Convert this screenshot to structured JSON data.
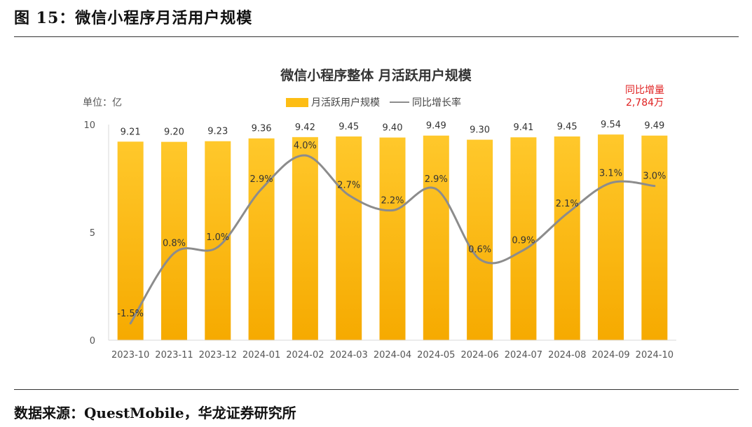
{
  "figure": {
    "title": "图 15：微信小程序月活用户规模",
    "source": "数据来源：QuestMobile，华龙证券研究所"
  },
  "chart_data": {
    "type": "bar",
    "title": "微信小程序整体 月活跃用户规模",
    "unit_label": "单位：亿",
    "categories": [
      "2023-10",
      "2023-11",
      "2023-12",
      "2024-01",
      "2024-02",
      "2024-03",
      "2024-04",
      "2024-05",
      "2024-06",
      "2024-07",
      "2024-08",
      "2024-09",
      "2024-10"
    ],
    "series": [
      {
        "name": "月活跃用户规模",
        "kind": "bar",
        "color": "#fdbd14",
        "values": [
          9.21,
          9.2,
          9.23,
          9.36,
          9.42,
          9.45,
          9.4,
          9.49,
          9.3,
          9.41,
          9.45,
          9.54,
          9.49
        ]
      },
      {
        "name": "同比增长率",
        "kind": "line",
        "color": "#8c8c8c",
        "values": [
          -1.5,
          0.8,
          1.0,
          2.9,
          4.0,
          2.7,
          2.2,
          2.9,
          0.6,
          0.9,
          2.1,
          3.1,
          3.0
        ],
        "labels": [
          "-1.5%",
          "0.8%",
          "1.0%",
          "2.9%",
          "4.0%",
          "2.7%",
          "2.2%",
          "2.9%",
          "0.6%",
          "0.9%",
          "2.1%",
          "3.1%",
          "3.0%"
        ]
      }
    ],
    "yaxis": {
      "ticks": [
        "0",
        "5",
        "10"
      ],
      "ylim": [
        0,
        10
      ]
    },
    "annotation": {
      "line1": "同比增量",
      "line2": "2,784万",
      "color": "#e02020"
    },
    "grid": false,
    "legend_position": "top"
  }
}
